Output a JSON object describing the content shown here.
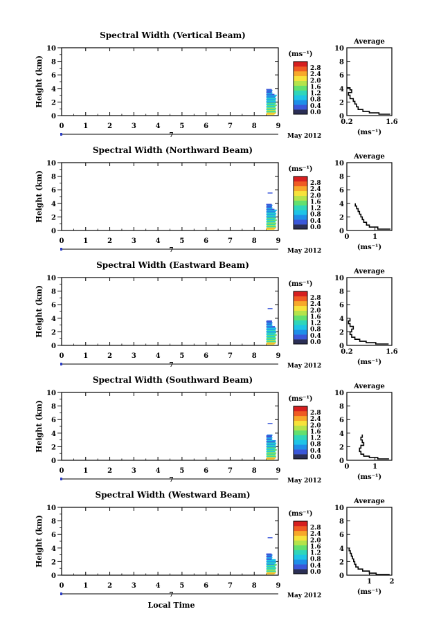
{
  "colors": {
    "scale": [
      "#2b2f55",
      "#3a57d9",
      "#1e8fe8",
      "#1ec4e6",
      "#2fd6b9",
      "#63e06e",
      "#b5e34a",
      "#f7e23a",
      "#f7a82a",
      "#ef5b23",
      "#d61f1f"
    ]
  },
  "common": {
    "y_label": "Height (km)",
    "x_ticks": [
      "0",
      "1",
      "2",
      "3",
      "4",
      "5",
      "6",
      "7",
      "8",
      "9"
    ],
    "date_day": "7",
    "date_label": "May 2012",
    "unit_label": "(ms⁻¹)",
    "colorbar_ticks": [
      "0.0",
      "0.4",
      "0.8",
      "1.2",
      "1.6",
      "2.0",
      "2.4",
      "2.8"
    ],
    "avg_title": "Average",
    "avg_xlabel": "(ms⁻¹)",
    "x_axis_label": "Local Time"
  },
  "chart_data": [
    {
      "type": "heatmap",
      "title": "Spectral Width (Vertical Beam)",
      "ylabel": "Height (km)",
      "xlabel": "",
      "xlim": [
        0,
        9
      ],
      "ylim": [
        0,
        10
      ],
      "yticks": [
        "0",
        "2",
        "4",
        "6",
        "8",
        "10"
      ],
      "data_block": {
        "x_start": 8.5,
        "x_end": 8.9,
        "y_max": 3.8
      },
      "colorbar": {
        "label": "(ms⁻¹)",
        "range": [
          0.0,
          2.8
        ]
      },
      "average_profile": {
        "title": "Average",
        "xlabel": "(ms⁻¹)",
        "xticks": [
          "0.2",
          "1.6"
        ],
        "xlim": [
          0.2,
          1.6
        ],
        "ylim": [
          0,
          10
        ],
        "points": [
          [
            1.55,
            0.2
          ],
          [
            1.2,
            0.4
          ],
          [
            0.9,
            0.6
          ],
          [
            0.7,
            0.9
          ],
          [
            0.55,
            1.3
          ],
          [
            0.5,
            1.7
          ],
          [
            0.45,
            2.1
          ],
          [
            0.4,
            2.5
          ],
          [
            0.3,
            3.0
          ],
          [
            0.25,
            3.4
          ],
          [
            0.35,
            3.8
          ],
          [
            0.3,
            4.1
          ],
          [
            0.22,
            4.2
          ]
        ]
      }
    },
    {
      "type": "heatmap",
      "title": "Spectral Width (Northward Beam)",
      "ylabel": "Height (km)",
      "xlabel": "",
      "xlim": [
        0,
        9
      ],
      "ylim": [
        0,
        10
      ],
      "yticks": [
        "0",
        "2",
        "4",
        "6",
        "8",
        "10"
      ],
      "data_block": {
        "x_start": 8.5,
        "x_end": 8.9,
        "y_max": 3.8,
        "isolated_y": 5.6
      },
      "colorbar": {
        "label": "(ms⁻¹)",
        "range": [
          0.0,
          2.8
        ]
      },
      "average_profile": {
        "title": "Average",
        "xlabel": "(ms⁻¹)",
        "xticks": [
          "0",
          "1"
        ],
        "xlim": [
          0,
          1.6
        ],
        "ylim": [
          0,
          10
        ],
        "points": [
          [
            1.55,
            0.2
          ],
          [
            1.1,
            0.5
          ],
          [
            0.8,
            0.8
          ],
          [
            0.7,
            1.2
          ],
          [
            0.6,
            1.6
          ],
          [
            0.55,
            2.0
          ],
          [
            0.5,
            2.4
          ],
          [
            0.45,
            2.8
          ],
          [
            0.4,
            3.2
          ],
          [
            0.35,
            3.6
          ],
          [
            0.3,
            4.0
          ]
        ]
      }
    },
    {
      "type": "heatmap",
      "title": "Spectral Width (Eastward Beam)",
      "ylabel": "Height (km)",
      "xlabel": "",
      "xlim": [
        0,
        9
      ],
      "ylim": [
        0,
        10
      ],
      "yticks": [
        "0",
        "2",
        "4",
        "6",
        "8",
        "10"
      ],
      "data_block": {
        "x_start": 8.5,
        "x_end": 8.9,
        "y_max": 3.5,
        "isolated_y": 5.5
      },
      "colorbar": {
        "label": "(ms⁻¹)",
        "range": [
          0.0,
          2.8
        ]
      },
      "average_profile": {
        "title": "Average",
        "xlabel": "(ms⁻¹)",
        "xticks": [
          "0.2",
          "1.6"
        ],
        "xlim": [
          0.2,
          1.6
        ],
        "ylim": [
          0,
          10
        ],
        "points": [
          [
            1.5,
            0.2
          ],
          [
            1.1,
            0.4
          ],
          [
            0.8,
            0.6
          ],
          [
            0.6,
            0.9
          ],
          [
            0.45,
            1.2
          ],
          [
            0.35,
            1.6
          ],
          [
            0.3,
            2.0
          ],
          [
            0.35,
            2.4
          ],
          [
            0.4,
            2.8
          ],
          [
            0.3,
            3.2
          ],
          [
            0.25,
            3.6
          ],
          [
            0.3,
            4.0
          ]
        ]
      }
    },
    {
      "type": "heatmap",
      "title": "Spectral Width (Southward Beam)",
      "ylabel": "Height (km)",
      "xlabel": "",
      "xlim": [
        0,
        9
      ],
      "ylim": [
        0,
        10
      ],
      "yticks": [
        "0",
        "2",
        "4",
        "6",
        "8",
        "10"
      ],
      "data_block": {
        "x_start": 8.5,
        "x_end": 8.9,
        "y_max": 3.6,
        "isolated_y": 5.5
      },
      "colorbar": {
        "label": "(ms⁻¹)",
        "range": [
          0.0,
          2.8
        ]
      },
      "average_profile": {
        "title": "Average",
        "xlabel": "(ms⁻¹)",
        "xticks": [
          "0",
          "1"
        ],
        "xlim": [
          0,
          1.6
        ],
        "ylim": [
          0,
          10
        ],
        "points": [
          [
            1.5,
            0.2
          ],
          [
            1.1,
            0.4
          ],
          [
            0.8,
            0.6
          ],
          [
            0.6,
            0.9
          ],
          [
            0.5,
            1.3
          ],
          [
            0.45,
            1.8
          ],
          [
            0.5,
            2.2
          ],
          [
            0.6,
            2.6
          ],
          [
            0.55,
            3.0
          ],
          [
            0.5,
            3.4
          ],
          [
            0.55,
            3.8
          ]
        ]
      }
    },
    {
      "type": "heatmap",
      "title": "Spectral Width (Westward Beam)",
      "ylabel": "Height (km)",
      "xlabel": "Local Time",
      "xlim": [
        0,
        9
      ],
      "ylim": [
        0,
        10
      ],
      "yticks": [
        "0",
        "2",
        "4",
        "6",
        "8",
        "10"
      ],
      "data_block": {
        "x_start": 8.5,
        "x_end": 8.9,
        "y_max": 3.0,
        "isolated_y": 5.6
      },
      "colorbar": {
        "label": "(ms⁻¹)",
        "range": [
          0.0,
          2.8
        ]
      },
      "average_profile": {
        "title": "Average",
        "xlabel": "(ms⁻¹)",
        "xticks": [
          "1",
          "2"
        ],
        "xlim": [
          0,
          2
        ],
        "ylim": [
          0,
          10
        ],
        "points": [
          [
            1.9,
            0.1
          ],
          [
            1.3,
            0.3
          ],
          [
            1.0,
            0.6
          ],
          [
            0.7,
            0.9
          ],
          [
            0.5,
            1.2
          ],
          [
            0.4,
            1.6
          ],
          [
            0.35,
            2.0
          ],
          [
            0.3,
            2.4
          ],
          [
            0.25,
            2.8
          ],
          [
            0.2,
            3.2
          ],
          [
            0.15,
            3.6
          ],
          [
            0.1,
            4.0
          ]
        ]
      }
    }
  ]
}
